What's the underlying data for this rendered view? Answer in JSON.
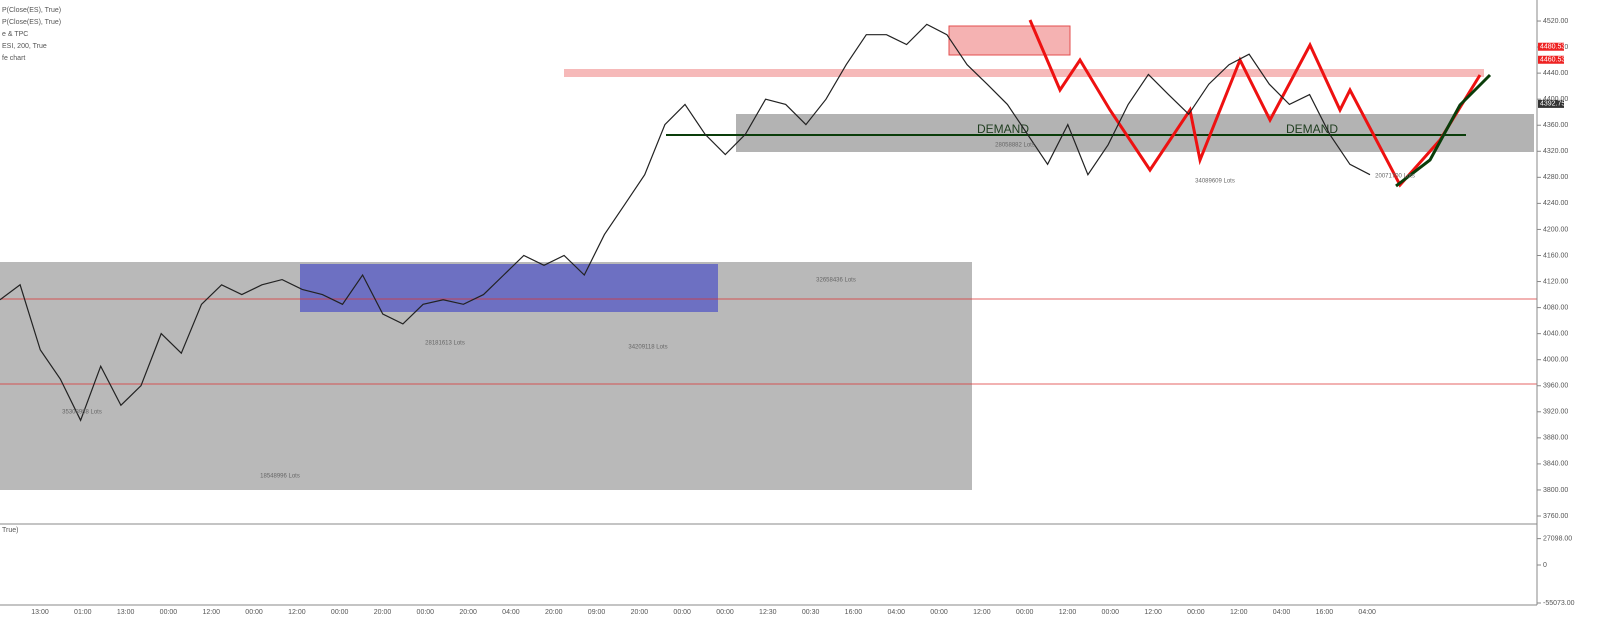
{
  "chart_data": {
    "type": "line",
    "indicator_labels": [
      "P(Close(ES), True)",
      "P(Close(ES), True)",
      "e & TPC",
      "ESI, 200, True",
      "fe chart"
    ],
    "lower_panel_label": "True)",
    "series": [
      {
        "name": "ES",
        "color": "#222222",
        "values": [
          4092,
          4115,
          4015,
          3970,
          3907,
          3990,
          3930,
          3960,
          4040,
          4010,
          4085,
          4115,
          4100,
          4115,
          4123,
          4108,
          4100,
          4085,
          4130,
          4070,
          4055,
          4085,
          4092,
          4085,
          4100,
          4130,
          4160,
          4145,
          4160,
          4130,
          4192,
          4238,
          4284,
          4361,
          4392,
          4346,
          4315,
          4346,
          4400,
          4392,
          4361,
          4400,
          4453,
          4499,
          4499,
          4484,
          4515,
          4499,
          4453,
          4423,
          4392,
          4346,
          4300,
          4361,
          4284,
          4330,
          4392,
          4438,
          4407,
          4377,
          4423,
          4453,
          4469,
          4423,
          4392,
          4407,
          4346,
          4300,
          4284
        ]
      }
    ],
    "ylim": [
      3760,
      4540
    ],
    "yticks": [
      {
        "value": 3760,
        "label": "3760.00"
      },
      {
        "value": 3800,
        "label": "3800.00"
      },
      {
        "value": 3840,
        "label": "3840.00"
      },
      {
        "value": 3880,
        "label": "3880.00"
      },
      {
        "value": 3920,
        "label": "3920.00"
      },
      {
        "value": 3960,
        "label": "3960.00"
      },
      {
        "value": 4000,
        "label": "4000.00"
      },
      {
        "value": 4040,
        "label": "4040.00"
      },
      {
        "value": 4080,
        "label": "4080.00"
      },
      {
        "value": 4120,
        "label": "4120.00"
      },
      {
        "value": 4160,
        "label": "4160.00"
      },
      {
        "value": 4200,
        "label": "4200.00"
      },
      {
        "value": 4240,
        "label": "4240.00"
      },
      {
        "value": 4280,
        "label": "4280.00"
      },
      {
        "value": 4320,
        "label": "4320.00"
      },
      {
        "value": 4360,
        "label": "4360.00"
      },
      {
        "value": 4400,
        "label": "4400.00"
      },
      {
        "value": 4440,
        "label": "4440.00"
      },
      {
        "value": 4480,
        "label": "4480.00"
      },
      {
        "value": 4520,
        "label": "4520.00"
      }
    ],
    "price_labels": [
      {
        "value": 4480.53,
        "label": "4480.53"
      },
      {
        "value": 4460.53,
        "label": "4460.53"
      },
      {
        "value": 4392.75,
        "label": "4392.75"
      }
    ],
    "lower_ticks": [
      {
        "value": 27098,
        "label": "27098.00"
      },
      {
        "value": 0,
        "label": "0"
      },
      {
        "value": -55073,
        "label": "-55073.00"
      }
    ],
    "time_labels": [
      "13:00",
      "01:00",
      "13:00",
      "00:00",
      "12:00",
      "00:00",
      "12:00",
      "00:00",
      "20:00",
      "00:00",
      "20:00",
      "04:00",
      "20:00",
      "09:00",
      "20:00",
      "00:00",
      "00:00",
      "12:30",
      "00:30",
      "16:00",
      "04:00",
      "00:00",
      "12:00",
      "00:00",
      "12:00",
      "00:00",
      "12:00",
      "00:00",
      "12:00",
      "04:00",
      "16:00",
      "04:00"
    ],
    "annotations": [
      "DEMAND",
      "DEMAND"
    ],
    "volume_notes": [
      "28058882 Lots",
      "34089609 Lots",
      "32658436 Lots",
      "28181613 Lots",
      "34209118 Lots",
      "35308988 Lots",
      "18548996 Lots",
      "20071700 Lots"
    ]
  }
}
